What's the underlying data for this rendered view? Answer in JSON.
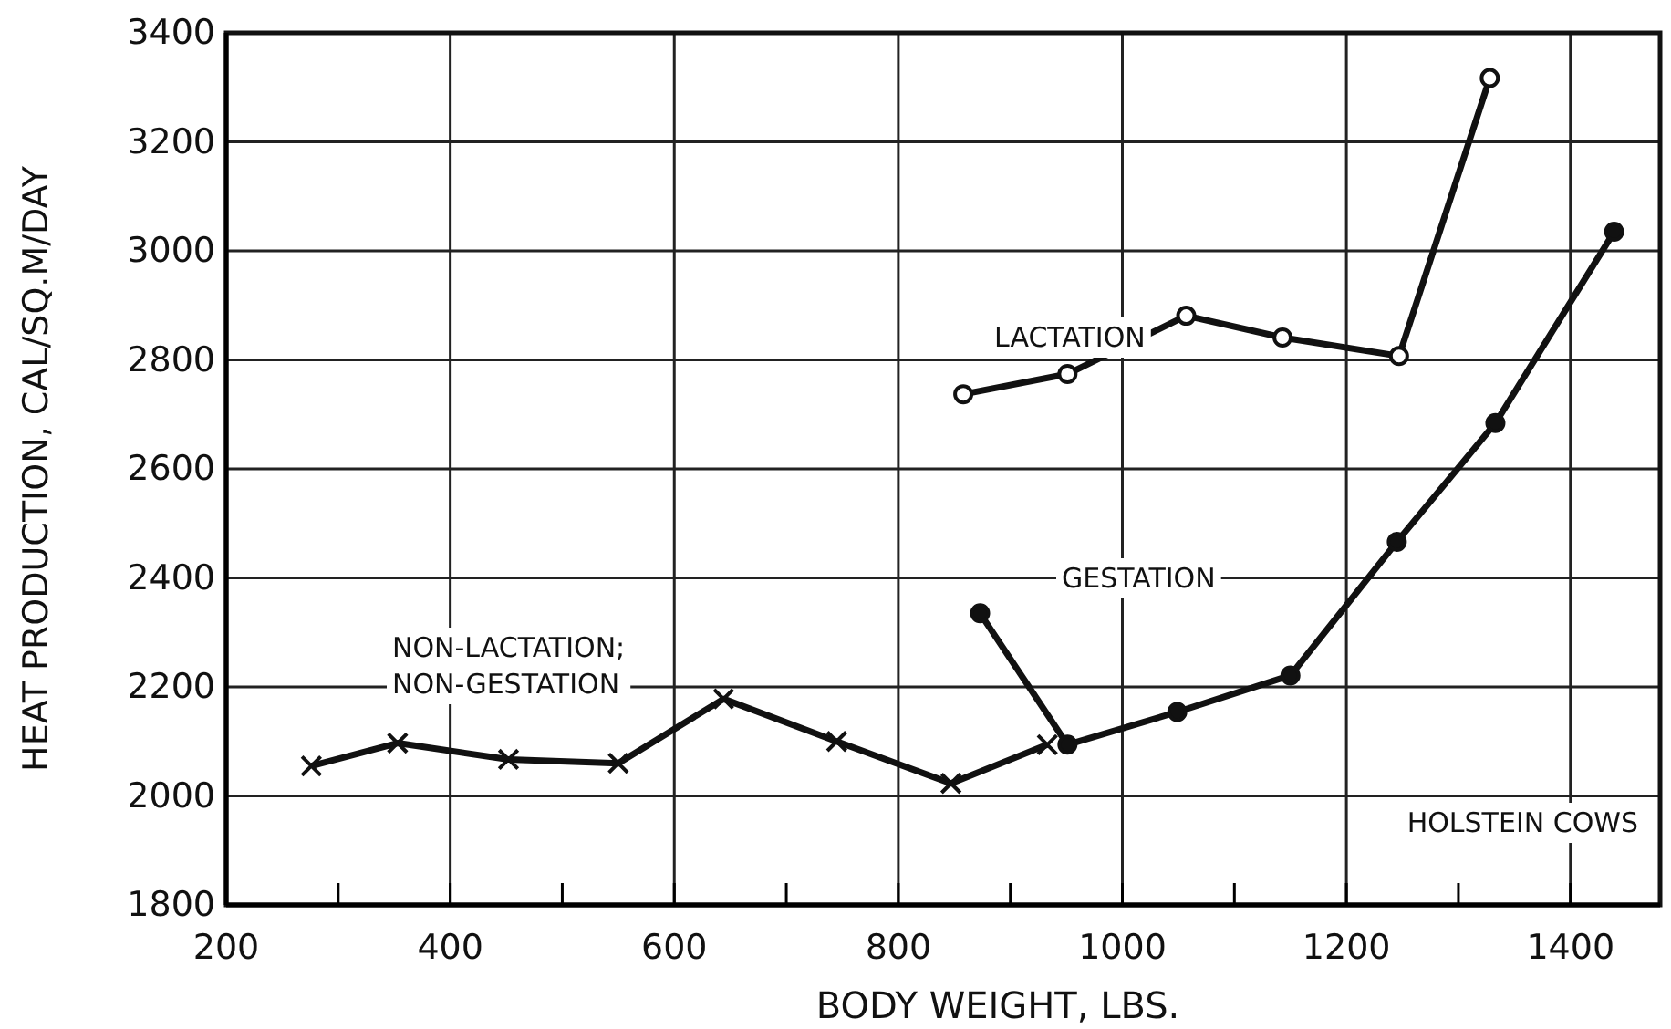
{
  "chart_data": {
    "type": "line",
    "xlabel": "BODY WEIGHT,  LBS.",
    "ylabel": "HEAT PRODUCTION, CAL/SQ.M/DAY",
    "xlim": [
      200,
      1480
    ],
    "ylim": [
      1800,
      3400
    ],
    "xticks": [
      200,
      {
        "value": 300,
        "label": null
      },
      400,
      {
        "value": 500,
        "label": null
      },
      600,
      {
        "value": 700,
        "label": null
      },
      800,
      {
        "value": 900,
        "label": null
      },
      1000,
      {
        "value": 1100,
        "label": null
      },
      1200,
      {
        "value": 1300,
        "label": null
      },
      1400
    ],
    "yticks": [
      1800,
      2000,
      2200,
      2400,
      2600,
      2800,
      3000,
      3200,
      3400
    ],
    "grid": true,
    "line_style": "solid",
    "series": [
      {
        "name": "NON-LACTATION; NON-GESTATION",
        "color": "#111111",
        "marker": "cross",
        "x": [
          276,
          353,
          452,
          550,
          644,
          745,
          847,
          933
        ],
        "values": [
          2055,
          2097,
          2067,
          2060,
          2178,
          2100,
          2023,
          2094
        ]
      },
      {
        "name": "GESTATION",
        "color": "#111111",
        "marker": "circle",
        "x": [
          873,
          951,
          1049,
          1150,
          1245,
          1333,
          1439
        ],
        "values": [
          2335,
          2094,
          2154,
          2221,
          2466,
          2684,
          3035
        ]
      },
      {
        "name": "LACTATION",
        "color": "#111111",
        "marker": "circle",
        "x": [
          858,
          951,
          1057,
          1143,
          1247,
          1328
        ],
        "values": [
          2737,
          2774,
          2881,
          2841,
          2807,
          3317
        ]
      }
    ],
    "annotations": [
      "HOLSTEIN COWS"
    ]
  }
}
